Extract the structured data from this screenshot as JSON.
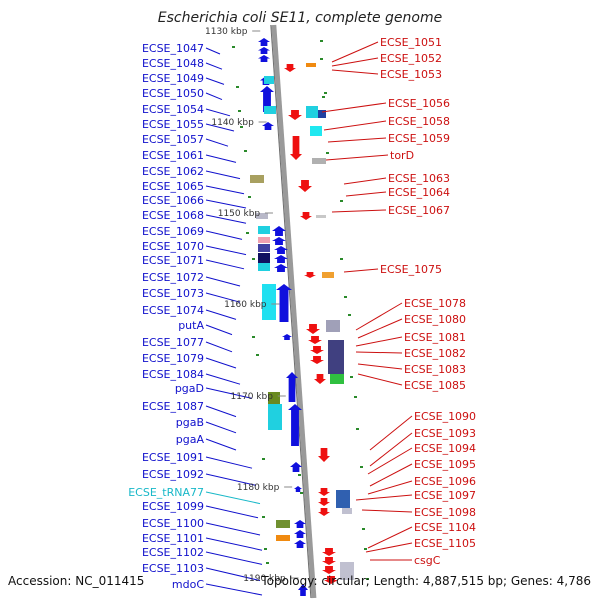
{
  "title": "Escherichia coli SE11, complete genome",
  "footer": {
    "accession": "Accession: NC_011415",
    "topology": "Topology: circular; Length: 4,887,515 bp; Genes: 4,786"
  },
  "kbp_labels": [
    "1130 kbp",
    "1140 kbp",
    "1150 kbp",
    "1160 kbp",
    "1170 kbp",
    "1180 kbp",
    "1190 kbp"
  ],
  "colors": {
    "left_label": "#1010cc",
    "right_label": "#cc1010",
    "trna_label": "#18b8c8",
    "forward_arrow": "#1010dd",
    "reverse_arrow": "#ee1010",
    "axis": "#9a9a9a"
  },
  "left_genes": [
    "ECSE_1047",
    "ECSE_1048",
    "ECSE_1049",
    "ECSE_1050",
    "ECSE_1054",
    "ECSE_1055",
    "ECSE_1057",
    "ECSE_1061",
    "ECSE_1062",
    "ECSE_1065",
    "ECSE_1066",
    "ECSE_1068",
    "ECSE_1069",
    "ECSE_1070",
    "ECSE_1071",
    "ECSE_1072",
    "ECSE_1073",
    "ECSE_1074",
    "putA",
    "ECSE_1077",
    "ECSE_1079",
    "ECSE_1084",
    "pgaD",
    "ECSE_1087",
    "pgaB",
    "pgaA",
    "ECSE_1091",
    "ECSE_1092",
    "ECSE_tRNA77",
    "ECSE_1099",
    "ECSE_1100",
    "ECSE_1101",
    "ECSE_1102",
    "ECSE_1103",
    "mdoC"
  ],
  "right_genes": [
    "ECSE_1051",
    "ECSE_1052",
    "ECSE_1053",
    "ECSE_1056",
    "ECSE_1058",
    "ECSE_1059",
    "torD",
    "ECSE_1063",
    "ECSE_1064",
    "ECSE_1067",
    "ECSE_1075",
    "ECSE_1078",
    "ECSE_1080",
    "ECSE_1081",
    "ECSE_1082",
    "ECSE_1083",
    "ECSE_1085",
    "ECSE_1090",
    "ECSE_1093",
    "ECSE_1094",
    "ECSE_1095",
    "ECSE_1096",
    "ECSE_1097",
    "ECSE_1098",
    "ECSE_1104",
    "ECSE_1105",
    "csgC"
  ],
  "trna_label_index": 28
}
